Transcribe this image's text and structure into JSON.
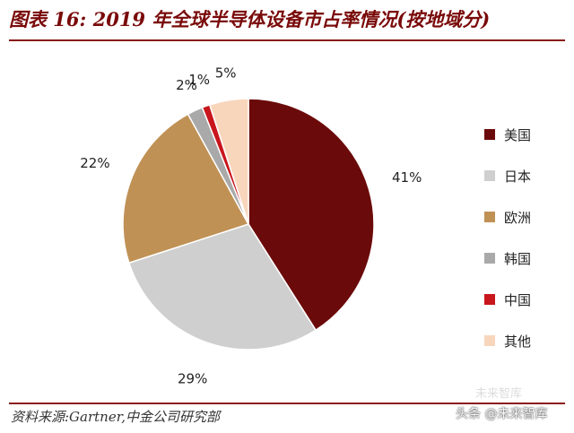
{
  "header": {
    "title": "图表 16: 2019 年全球半导体设备市占率情况(按地域分)"
  },
  "footer": {
    "source": "资料来源:Gartner,中金公司研究部",
    "watermark": "头条 @未来智库",
    "watermark_secondary": "未来智库"
  },
  "colors": {
    "title": "#7a0a0a",
    "rule": "#8b1a1a"
  },
  "chart_data": {
    "type": "pie",
    "title": "图表 16: 2019 年全球半导体设备市占率情况(按地域分)",
    "start_angle_deg": 0,
    "direction": "clockwise",
    "legend_position": "right",
    "slices": [
      {
        "name": "美国",
        "value": 41,
        "label": "41%",
        "color": "#6b0a0a"
      },
      {
        "name": "日本",
        "value": 29,
        "label": "29%",
        "color": "#cfcfcf"
      },
      {
        "name": "欧洲",
        "value": 22,
        "label": "22%",
        "color": "#c09155"
      },
      {
        "name": "韩国",
        "value": 2,
        "label": "2%",
        "color": "#a9a9a9"
      },
      {
        "name": "中国",
        "value": 1,
        "label": "1%",
        "color": "#c8161d"
      },
      {
        "name": "其他",
        "value": 5,
        "label": "5%",
        "color": "#f8d6bc"
      }
    ]
  }
}
